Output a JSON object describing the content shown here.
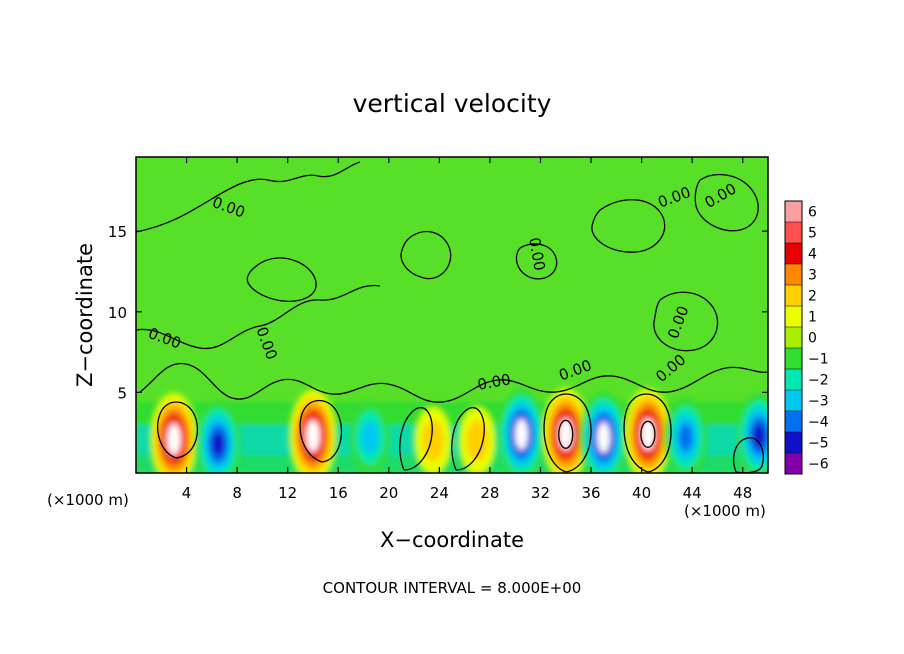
{
  "chart_data": {
    "type": "heatmap",
    "title": "vertical velocity",
    "xlabel": "X−coordinate",
    "ylabel": "Z−coordinate",
    "x_unit_left": "(×1000 m)",
    "x_unit_right": "(×1000 m)",
    "footer": "CONTOUR INTERVAL = 8.000E+00",
    "xlim": [
      0,
      50
    ],
    "ylim": [
      0,
      19.6
    ],
    "x_ticks": [
      4,
      8,
      12,
      16,
      20,
      24,
      28,
      32,
      36,
      40,
      44,
      48
    ],
    "x_tick_labels": [
      "4",
      "8",
      "12",
      "16",
      "20",
      "24",
      "28",
      "32",
      "36",
      "40",
      "44",
      "48"
    ],
    "y_ticks": [
      5,
      10,
      15
    ],
    "y_tick_labels": [
      "5",
      "10",
      "15"
    ],
    "colorbar": {
      "levels": [
        6,
        5,
        4,
        3,
        2,
        1,
        0,
        -1,
        -2,
        -3,
        -4,
        -5,
        -6
      ],
      "labels": [
        "6",
        "5",
        "4",
        "3",
        "2",
        "1",
        "0",
        "−1",
        "−2",
        "−3",
        "−4",
        "−5",
        "−6"
      ],
      "colors": [
        "#f8a0a0",
        "#ff5050",
        "#e80000",
        "#ff8800",
        "#ffd000",
        "#eaff00",
        "#a8f000",
        "#30dd30",
        "#00e8b0",
        "#00c8f0",
        "#0070f0",
        "#1010c8",
        "#8000a8"
      ]
    },
    "contour_label": "0.00",
    "features": [
      {
        "kind": "updraft",
        "x": 3,
        "z": 2.1,
        "peak": 6
      },
      {
        "kind": "downdraft",
        "x": 6.5,
        "z": 1.8,
        "peak": -5
      },
      {
        "kind": "updraft",
        "x": 14,
        "z": 2.3,
        "peak": 6
      },
      {
        "kind": "downdraft",
        "x": 18.5,
        "z": 2.2,
        "peak": -3
      },
      {
        "kind": "updraft",
        "x": 23.5,
        "z": 2,
        "peak": 2
      },
      {
        "kind": "updraft",
        "x": 27,
        "z": 2,
        "peak": 2
      },
      {
        "kind": "downdraft",
        "x": 30.5,
        "z": 2.4,
        "peak": -6
      },
      {
        "kind": "updraft",
        "x": 34,
        "z": 2.4,
        "peak": 6
      },
      {
        "kind": "downdraft",
        "x": 37,
        "z": 2.2,
        "peak": -6
      },
      {
        "kind": "updraft",
        "x": 40.5,
        "z": 2.4,
        "peak": 6
      },
      {
        "kind": "downdraft",
        "x": 43.5,
        "z": 2.2,
        "peak": -4
      },
      {
        "kind": "downdraft",
        "x": 49.3,
        "z": 2.3,
        "peak": -5
      }
    ]
  }
}
